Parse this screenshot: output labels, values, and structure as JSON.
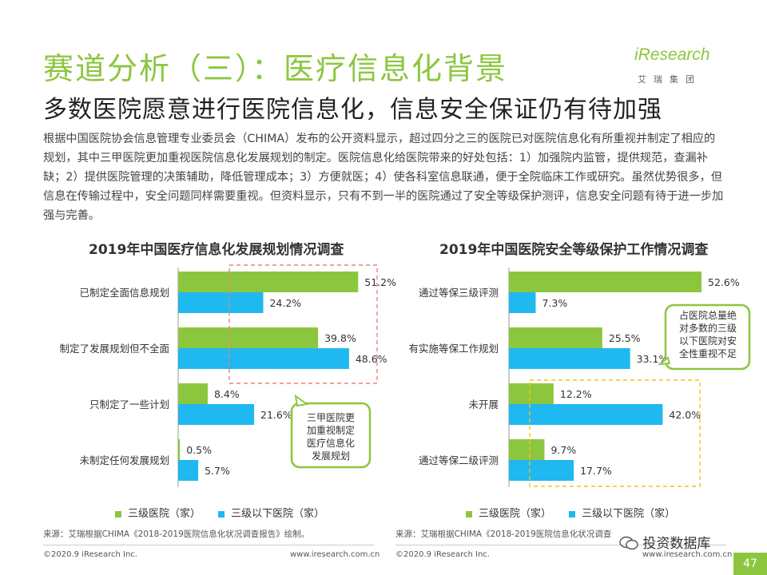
{
  "header": {
    "title": "赛道分析（三）：医疗信息化背景",
    "subtitle": "多数医院愿意进行医院信息化，信息安全保证仍有待加强",
    "logo_text": "iResearch",
    "logo_cn": "艾瑞集团"
  },
  "intro": "根据中国医院协会信息管理专业委员会（CHIMA）发布的公开资料显示，超过四分之三的医院已对医院信息化有所重视并制定了相应的规划，其中三甲医院更加重视医院信息化发展规划的制定。医院信息化给医院带来的好处包括：1）加强院内监管，提供规范，查漏补缺；2）提供医院管理的决策辅助，降低管理成本；3）方便就医；4）使各科室信息联通，便于全院临床工作或研究。虽然优势很多，但信息在传输过程中，安全问题同样需要重视。但资料显示，只有不到一半的医院通过了安全等级保护测评，信息安全问题有待于进一步加强与完善。",
  "colors": {
    "green": "#8cc63f",
    "blue": "#1fb8f0",
    "red_dash": "#e8837c",
    "yellow_dash": "#f0c419"
  },
  "chart_data": [
    {
      "type": "bar",
      "orientation": "horizontal",
      "title": "2019年中国医疗信息化发展规划情况调查",
      "categories": [
        "已制定全面信息规划",
        "制定了发展规划但不全面",
        "只制定了一些计划",
        "未制定任何发展规划"
      ],
      "series": [
        {
          "name": "三级医院（家）",
          "values": [
            51.2,
            39.8,
            8.4,
            0.5
          ],
          "labels": [
            "51.2%",
            "39.8%",
            "8.4%",
            "0.5%"
          ]
        },
        {
          "name": "三级以下医院（家）",
          "values": [
            24.2,
            48.6,
            21.6,
            5.7
          ],
          "labels": [
            "24.2%",
            "48.6%",
            "21.6%",
            "5.7%"
          ]
        }
      ],
      "xlim": [
        0,
        55
      ],
      "annotation": "三甲医院更加重视制定医疗信息化发展规划",
      "source": "来源：艾瑞根据CHIMA《2018-2019医院信息化状况调查报告》绘制。"
    },
    {
      "type": "bar",
      "orientation": "horizontal",
      "title": "2019年中国医院安全等级保护工作情况调查",
      "categories": [
        "通过等保三级评测",
        "有实施等保工作规划",
        "未开展",
        "通过等保二级评测"
      ],
      "series": [
        {
          "name": "三级医院（家）",
          "values": [
            52.6,
            25.5,
            12.2,
            9.7
          ],
          "labels": [
            "52.6%",
            "25.5%",
            "12.2%",
            "9.7%"
          ]
        },
        {
          "name": "三级以下医院（家）",
          "values": [
            7.3,
            33.1,
            42.0,
            17.7
          ],
          "labels": [
            "7.3%",
            "33.1%",
            "42.0%",
            "17.7%"
          ]
        }
      ],
      "xlim": [
        0,
        55
      ],
      "annotation": "占医院总量绝对多数的三级以下医院对安全性重视不足",
      "source": "来源：艾瑞根据CHIMA《2018-2019医院信息化状况调查"
    }
  ],
  "footer": {
    "copyright": "©2020.9 iResearch Inc.",
    "website": "www.iresearch.com.cn",
    "page": "47",
    "watermark": "投资数据库"
  }
}
